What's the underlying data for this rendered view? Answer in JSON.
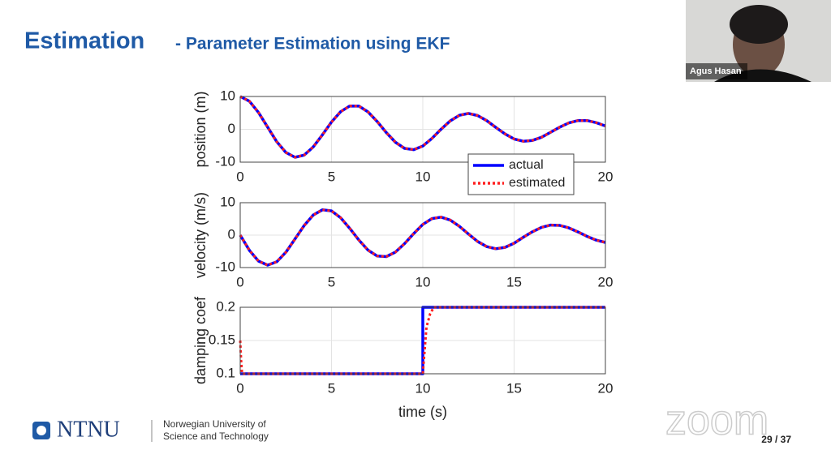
{
  "header": {
    "title": "Estimation",
    "subtitle": "- Parameter Estimation using EKF"
  },
  "webcam": {
    "name": "Agus Hasan"
  },
  "footer": {
    "logo": "NTNU",
    "university": [
      "Norwegian University of",
      "Science and Technology"
    ],
    "page": "29 / 37",
    "watermark": "zoom"
  },
  "charts": [
    {
      "type": "line",
      "ylabel": "position (m)",
      "xlim": [
        0,
        20
      ],
      "ylim": [
        -10,
        10
      ],
      "xticks": [
        0,
        5,
        10,
        15,
        20
      ],
      "yticks": [
        -10,
        0,
        10
      ],
      "grid": true,
      "legend": "lower-right",
      "x": [
        0,
        0.5,
        1,
        1.5,
        2,
        2.5,
        3,
        3.5,
        4,
        4.5,
        5,
        5.5,
        6,
        6.5,
        7,
        7.5,
        8,
        8.5,
        9,
        9.5,
        10,
        10.5,
        11,
        11.5,
        12,
        12.5,
        13,
        13.5,
        14,
        14.5,
        15,
        15.5,
        16,
        16.5,
        17,
        17.5,
        18,
        18.5,
        19,
        19.5,
        20
      ],
      "series": [
        {
          "name": "actual",
          "color": "#0000ff",
          "line_style": "solid",
          "values": [
            10,
            8.56,
            5.14,
            0.66,
            -3.77,
            -7.07,
            -8.52,
            -7.86,
            -5.35,
            -1.68,
            2.21,
            5.38,
            7.11,
            7.06,
            5.31,
            2.38,
            -0.98,
            -3.94,
            -5.81,
            -6.2,
            -5.09,
            -2.76,
            0.02,
            2.56,
            4.28,
            4.83,
            4.2,
            2.63,
            0.58,
            -1.4,
            -2.94,
            -3.64,
            -3.38,
            -2.41,
            -0.89,
            0.66,
            1.95,
            2.67,
            2.67,
            2.02,
            1.01
          ]
        },
        {
          "name": "estimated",
          "color": "#ff2020",
          "line_style": "dotted",
          "values": [
            10,
            8.56,
            5.14,
            0.66,
            -3.77,
            -7.07,
            -8.52,
            -7.86,
            -5.35,
            -1.68,
            2.21,
            5.38,
            7.11,
            7.06,
            5.31,
            2.38,
            -0.98,
            -3.94,
            -5.81,
            -6.2,
            -5.09,
            -2.76,
            0.02,
            2.56,
            4.28,
            4.83,
            4.2,
            2.63,
            0.58,
            -1.4,
            -2.94,
            -3.64,
            -3.38,
            -2.41,
            -0.89,
            0.66,
            1.95,
            2.67,
            2.67,
            2.02,
            1.01
          ]
        }
      ]
    },
    {
      "type": "line",
      "ylabel": "velocity (m/s)",
      "xlim": [
        0,
        20
      ],
      "ylim": [
        -10,
        10
      ],
      "xticks": [
        0,
        5,
        10,
        15,
        20
      ],
      "yticks": [
        -10,
        0,
        10
      ],
      "grid": true,
      "x": [
        0,
        0.5,
        1,
        1.5,
        2,
        2.5,
        3,
        3.5,
        4,
        4.5,
        5,
        5.5,
        6,
        6.5,
        7,
        7.5,
        8,
        8.5,
        9,
        9.5,
        10,
        10.5,
        11,
        11.5,
        12,
        12.5,
        13,
        13.5,
        14,
        14.5,
        15,
        15.5,
        16,
        16.5,
        17,
        17.5,
        18,
        18.5,
        19,
        19.5,
        20
      ],
      "series": [
        {
          "name": "actual",
          "color": "#0000ff",
          "line_style": "solid",
          "values": [
            0,
            -4.68,
            -8,
            -9.25,
            -8.23,
            -5.28,
            -1.21,
            2.94,
            6.2,
            7.81,
            7.47,
            5.36,
            2.07,
            -1.55,
            -4.63,
            -6.45,
            -6.63,
            -5.22,
            -2.63,
            0.47,
            3.3,
            5.1,
            5.54,
            4.64,
            2.72,
            0.32,
            -1.95,
            -3.56,
            -4.19,
            -3.78,
            -2.51,
            -0.64,
            1.02,
            2.41,
            3.11,
            3.01,
            2.22,
            0.97,
            -0.4,
            -1.56,
            -2.25
          ]
        },
        {
          "name": "estimated",
          "color": "#ff2020",
          "line_style": "dotted",
          "values": [
            0,
            -4.68,
            -8,
            -9.25,
            -8.23,
            -5.28,
            -1.21,
            2.94,
            6.2,
            7.81,
            7.47,
            5.36,
            2.07,
            -1.55,
            -4.63,
            -6.45,
            -6.63,
            -5.22,
            -2.63,
            0.47,
            3.3,
            5.1,
            5.54,
            4.64,
            2.72,
            0.32,
            -1.95,
            -3.56,
            -4.19,
            -3.78,
            -2.51,
            -0.64,
            1.02,
            2.41,
            3.11,
            3.01,
            2.22,
            0.97,
            -0.4,
            -1.56,
            -2.25
          ]
        }
      ]
    },
    {
      "type": "line",
      "ylabel": "damping coef",
      "xlabel": "time (s)",
      "xlim": [
        0,
        20
      ],
      "ylim": [
        0.1,
        0.2
      ],
      "xticks": [
        0,
        5,
        10,
        15,
        20
      ],
      "yticks": [
        0.1,
        0.15,
        0.2
      ],
      "grid": true,
      "series": [
        {
          "name": "actual",
          "color": "#0000ff",
          "line_style": "solid",
          "x": [
            0,
            10,
            10,
            20
          ],
          "values": [
            0.1,
            0.1,
            0.2,
            0.2
          ]
        },
        {
          "name": "estimated",
          "color": "#ff2020",
          "line_style": "dotted",
          "x": [
            0,
            0.05,
            0.1,
            10,
            10.2,
            10.4,
            10.6,
            20
          ],
          "values": [
            0.15,
            0.12,
            0.1,
            0.1,
            0.17,
            0.19,
            0.2,
            0.2
          ]
        }
      ]
    }
  ]
}
